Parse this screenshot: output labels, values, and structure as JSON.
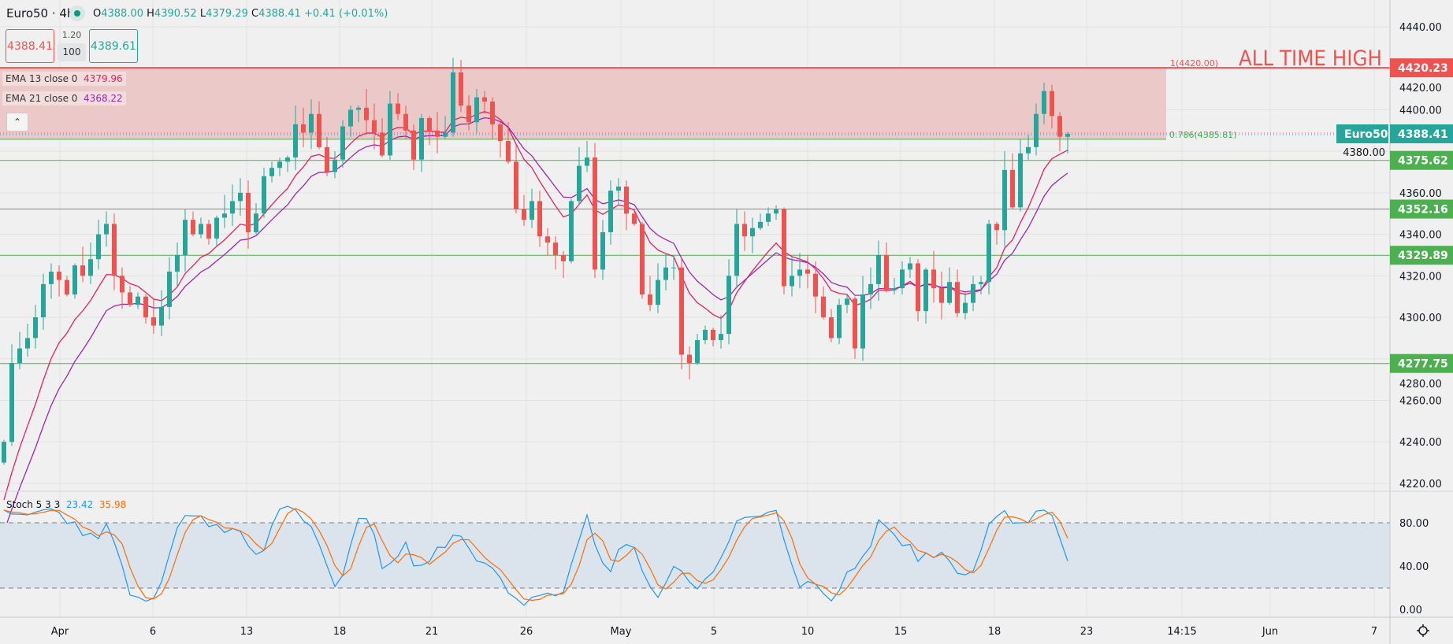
{
  "header": {
    "symbol": "Euro50 · 4h",
    "status_icon": "market-open-dot",
    "ohlc": {
      "o_label": "O",
      "o": "4388.00",
      "h_label": "H",
      "h": "4390.52",
      "l_label": "L",
      "l": "4379.29",
      "c_label": "C",
      "c": "4388.41",
      "change": "+0.41 (+0.01%)"
    },
    "sell_price": "4388.41",
    "spread": "1.20",
    "quantity": "100",
    "buy_price": "4389.61"
  },
  "indicators": {
    "ema13": {
      "label": "EMA 13 close 0",
      "value": "4379.96",
      "color": "#e91e63"
    },
    "ema21": {
      "label": "EMA 21 close 0",
      "value": "4368.22",
      "color": "#9c27b0"
    },
    "collapse_icon": "chevron-up-icon",
    "stoch": {
      "label": "Stoch 5 3 3",
      "k": "23.42",
      "d": "35.98",
      "k_color": "#2196f3",
      "d_color": "#ff6d00"
    }
  },
  "annotations": {
    "ath_text": "ALL TIME HIGH",
    "fib_1": "1(4420.00)",
    "fib_786": "0.786(4385.81)",
    "symbol_tag": "Euro50"
  },
  "price_axis": {
    "ticks": [
      "4440.00",
      "4420.00",
      "4400.00",
      "4380.00",
      "4360.00",
      "4340.00",
      "4320.00",
      "4300.00",
      "4280.00",
      "4260.00",
      "4240.00",
      "4220.00"
    ],
    "tags": [
      {
        "value": "4420.23",
        "color": "#ef5350"
      },
      {
        "value": "4388.41",
        "color": "#26a69a"
      },
      {
        "value": "4375.62",
        "color": "#4caf50"
      },
      {
        "value": "4352.16",
        "color": "#4caf50"
      },
      {
        "value": "4329.89",
        "color": "#4caf50"
      },
      {
        "value": "4277.75",
        "color": "#4caf50"
      }
    ]
  },
  "stoch_axis": {
    "ticks": [
      "80.00",
      "40.00",
      "0.00"
    ]
  },
  "time_axis": {
    "labels": [
      "Apr",
      "6",
      "13",
      "18",
      "21",
      "26",
      "May",
      "5",
      "10",
      "15",
      "18",
      "23",
      "14:15",
      "Jun",
      "7"
    ]
  },
  "settings_icon": "gear-icon",
  "colors": {
    "up": "#26a69a",
    "down": "#ef5350",
    "level": "#4caf50",
    "ath": "#ef5350",
    "zone": "#ecc9c9",
    "stoch_band": "#dbe4ec",
    "background": "#f0f0f0"
  },
  "chart_data": {
    "type": "candlestick",
    "symbol": "Euro50",
    "timeframe": "4h",
    "ylim": [
      4210,
      4450
    ],
    "first_open": 4230,
    "close": [
      4240,
      4278,
      4285,
      4290,
      4300,
      4316,
      4322,
      4318,
      4311,
      4325,
      4320,
      4328,
      4340,
      4345,
      4320,
      4312,
      4306,
      4310,
      4300,
      4296,
      4305,
      4322,
      4330,
      4347,
      4340,
      4345,
      4338,
      4348,
      4350,
      4356,
      4360,
      4341,
      4350,
      4368,
      4372,
      4375,
      4377,
      4393,
      4389,
      4398,
      4382,
      4370,
      4376,
      4392,
      4400,
      4401,
      4395,
      4389,
      4378,
      4403,
      4398,
      4390,
      4376,
      4396,
      4390,
      4387,
      4389,
      4418,
      4402,
      4394,
      4406,
      4404,
      4393,
      4385,
      4375,
      4352,
      4347,
      4356,
      4339,
      4336,
      4330,
      4327,
      4356,
      4373,
      4377,
      4323,
      4341,
      4361,
      4363,
      4350,
      4345,
      4311,
      4306,
      4318,
      4324,
      4324,
      4282,
      4278,
      4289,
      4294,
      4289,
      4292,
      4320,
      4345,
      4339,
      4343,
      4346,
      4350,
      4352,
      4315,
      4320,
      4323,
      4321,
      4310,
      4300,
      4290,
      4306,
      4309,
      4285,
      4311,
      4316,
      4330,
      4313,
      4314,
      4323,
      4326,
      4303,
      4323,
      4314,
      4307,
      4317,
      4302,
      4307,
      4316,
      4317,
      4345,
      4342,
      4371,
      4353,
      4379,
      4382,
      4398,
      4409,
      4397,
      4387,
      4388.41
    ],
    "horizontal_levels": [
      4420.23,
      4375.62,
      4352.16,
      4329.89,
      4277.75
    ],
    "fib_zone": [
      4385.81,
      4420.0
    ],
    "stoch_levels": [
      20,
      80
    ],
    "stoch_ylim": [
      0,
      100
    ]
  }
}
